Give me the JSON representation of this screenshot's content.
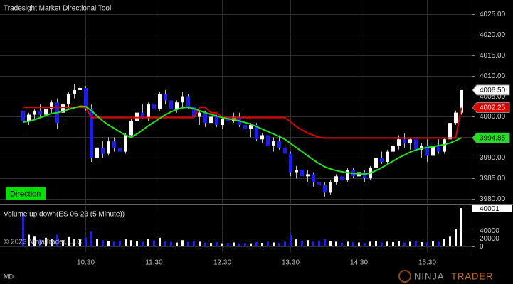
{
  "chart_data": [
    {
      "type": "candlestick",
      "title": "Tradesight Market Directional Tool",
      "button_label": "Direction",
      "categories": [
        null,
        null,
        null,
        null,
        null,
        null,
        null,
        null,
        null,
        null,
        null,
        "10:30",
        null,
        null,
        null,
        null,
        null,
        null,
        null,
        null,
        null,
        null,
        null,
        "11:30",
        null,
        null,
        null,
        null,
        null,
        null,
        null,
        null,
        null,
        null,
        null,
        "12:30",
        null,
        null,
        null,
        null,
        null,
        null,
        null,
        null,
        null,
        null,
        null,
        "13:30",
        null,
        null,
        null,
        null,
        null,
        null,
        null,
        null,
        null,
        null,
        null,
        "14:30",
        null,
        null,
        null,
        null,
        null,
        null,
        null,
        null,
        null,
        null,
        null,
        "15:30",
        null,
        null,
        null,
        null,
        null,
        null
      ],
      "open": [
        4001.5,
        3999.0,
        4000.5,
        4001.5,
        4000.5,
        4002.0,
        4003.5,
        4001.0,
        4003.0,
        4005.5,
        4006.5,
        4007.0,
        4002.0,
        3990.0,
        3992.5,
        3991.0,
        3994.0,
        3992.5,
        3991.5,
        3995.5,
        3999.0,
        4001.0,
        4000.0,
        4003.0,
        4002.0,
        4005.5,
        4004.0,
        4002.0,
        4003.5,
        4005.0,
        4002.5,
        4000.0,
        4001.0,
        3998.5,
        4000.0,
        3998.0,
        3999.5,
        3999.0,
        4000.0,
        3998.0,
        3997.0,
        3998.0,
        3994.5,
        3995.5,
        3993.0,
        3994.0,
        3992.5,
        3991.0,
        3986.5,
        3987.0,
        3985.5,
        3986.0,
        3984.0,
        3983.5,
        3981.5,
        3984.0,
        3985.5,
        3984.5,
        3987.0,
        3985.5,
        3986.5,
        3985.0,
        3987.5,
        3990.0,
        3989.0,
        3991.5,
        3993.0,
        3994.5,
        3993.5,
        3994.5,
        3992.0,
        3993.0,
        3990.5,
        3993.0,
        3991.5,
        3994.5,
        3998.5,
        4001.0
      ],
      "high": [
        4002.5,
        4001.0,
        4002.0,
        4003.0,
        4002.5,
        4004.0,
        4004.5,
        4004.0,
        4006.0,
        4008.0,
        4008.5,
        4007.5,
        4003.0,
        3993.5,
        3994.0,
        3995.0,
        3995.0,
        3993.5,
        3996.0,
        3999.5,
        4001.5,
        4003.0,
        4003.5,
        4005.0,
        4006.0,
        4006.5,
        4005.0,
        4004.0,
        4006.0,
        4005.5,
        4003.0,
        4001.5,
        4001.5,
        4000.5,
        4000.5,
        4000.0,
        4000.5,
        4001.0,
        4001.0,
        3999.5,
        3998.5,
        3998.5,
        3996.0,
        3996.0,
        3995.0,
        3995.5,
        3993.5,
        3991.5,
        3988.0,
        3987.5,
        3987.0,
        3986.5,
        3985.5,
        3984.0,
        3984.5,
        3986.0,
        3986.5,
        3987.5,
        3987.5,
        3987.0,
        3987.0,
        3988.0,
        3990.5,
        3991.5,
        3992.0,
        3993.5,
        3995.5,
        3996.0,
        3995.0,
        3995.0,
        3993.5,
        3994.5,
        3993.5,
        3994.5,
        3995.0,
        3999.0,
        4001.5,
        4006.5
      ],
      "low": [
        3995.5,
        3998.0,
        3999.5,
        4000.0,
        3999.0,
        4001.0,
        3997.0,
        3998.5,
        4002.0,
        4004.5,
        4005.0,
        4001.5,
        3989.0,
        3989.5,
        3990.0,
        3990.5,
        3991.5,
        3990.5,
        3991.0,
        3995.0,
        3998.0,
        3999.5,
        3999.0,
        4001.5,
        4001.5,
        4003.0,
        4001.0,
        4001.0,
        4002.5,
        4002.0,
        3999.0,
        3998.0,
        3997.5,
        3997.0,
        3997.5,
        3997.0,
        3998.0,
        3998.5,
        3997.5,
        3996.5,
        3995.0,
        3994.0,
        3993.5,
        3992.0,
        3991.5,
        3992.0,
        3989.5,
        3985.5,
        3985.0,
        3984.5,
        3984.0,
        3983.0,
        3982.5,
        3980.5,
        3981.0,
        3983.5,
        3983.5,
        3984.0,
        3985.0,
        3984.5,
        3984.0,
        3984.5,
        3987.0,
        3988.5,
        3988.5,
        3991.0,
        3992.0,
        3992.5,
        3992.0,
        3991.5,
        3990.0,
        3989.0,
        3990.0,
        3991.0,
        3991.0,
        3994.0,
        3998.0,
        4000.5
      ],
      "close": [
        3999.0,
        4000.5,
        4001.5,
        4000.5,
        4002.0,
        4003.5,
        3998.5,
        4003.0,
        4005.5,
        4006.5,
        4007.0,
        4002.0,
        3990.0,
        3992.5,
        3991.0,
        3994.0,
        3992.5,
        3991.5,
        3995.5,
        3999.0,
        4001.0,
        4000.0,
        4003.0,
        4002.0,
        4005.5,
        4004.0,
        4002.0,
        4003.5,
        4005.0,
        4002.5,
        4000.0,
        4001.0,
        3998.5,
        4000.0,
        3998.0,
        3999.5,
        3999.0,
        4000.0,
        3998.0,
        3997.0,
        3998.0,
        3994.5,
        3995.5,
        3993.0,
        3994.0,
        3992.5,
        3991.0,
        3986.5,
        3987.0,
        3985.5,
        3986.0,
        3984.0,
        3983.5,
        3981.5,
        3984.0,
        3985.5,
        3984.5,
        3987.0,
        3985.5,
        3986.5,
        3985.0,
        3987.5,
        3990.0,
        3989.0,
        3991.5,
        3993.0,
        3994.5,
        3993.5,
        3994.5,
        3992.0,
        3993.0,
        3990.5,
        3993.0,
        3991.5,
        3994.5,
        3998.5,
        4001.0,
        4006.5
      ],
      "up_color": "#ffffff",
      "down_color": "#1a1aff",
      "wick_color": "#bcbcbc",
      "lines": [
        {
          "color": "#e00000",
          "values": [
            4002.3,
            4002.3,
            4002.3,
            4002.3,
            4002.3,
            4002.3,
            4002.3,
            4002.3,
            4002.3,
            4002.3,
            4002.3,
            4002.3,
            3999.8,
            3999.8,
            3999.8,
            3999.8,
            3999.8,
            3999.8,
            3999.8,
            3999.8,
            3999.8,
            3999.8,
            3999.8,
            3999.8,
            3999.8,
            3999.8,
            3999.8,
            3999.8,
            3999.8,
            3999.8,
            3999.8,
            4002.3,
            4002.3,
            4001.0,
            4001.0,
            3999.8,
            3999.8,
            3999.8,
            3999.8,
            3999.8,
            3999.8,
            3999.8,
            3999.8,
            3999.8,
            3999.8,
            3999.8,
            3999.8,
            3998.8,
            3997.6,
            3996.8,
            3996.0,
            3995.5,
            3995.0,
            3994.8,
            3994.8,
            3994.8,
            3994.8,
            3994.8,
            3994.8,
            3994.8,
            3994.8,
            3994.8,
            3994.8,
            3994.8,
            3994.8,
            3994.8,
            3994.8,
            3994.8,
            3994.8,
            3994.8,
            3994.8,
            3994.8,
            3994.8,
            3994.8,
            3994.8,
            3994.8,
            3994.8,
            4002.25
          ]
        },
        {
          "color": "#22e022",
          "values": [
            3998.7,
            3998.9,
            3999.3,
            3999.8,
            4000.3,
            4000.8,
            4001.0,
            4001.3,
            4001.8,
            4002.2,
            4002.6,
            4002.5,
            4001.5,
            4000.2,
            3999.0,
            3998.0,
            3997.2,
            3996.3,
            3995.5,
            3995.0,
            3995.8,
            3996.8,
            3997.8,
            3998.7,
            3999.6,
            4000.5,
            4001.2,
            4001.8,
            4002.2,
            4002.3,
            4002.0,
            4001.5,
            4001.0,
            4000.6,
            4000.2,
            3999.8,
            3999.5,
            3999.3,
            3999.0,
            3998.6,
            3998.2,
            3997.6,
            3997.0,
            3996.4,
            3995.8,
            3995.2,
            3994.5,
            3993.5,
            3992.5,
            3991.5,
            3990.5,
            3989.5,
            3988.6,
            3987.8,
            3987.3,
            3986.9,
            3986.6,
            3986.4,
            3986.2,
            3986.1,
            3986.0,
            3986.3,
            3986.9,
            3987.6,
            3988.4,
            3989.2,
            3990.0,
            3990.7,
            3991.4,
            3991.9,
            3992.3,
            3992.5,
            3992.7,
            3993.0,
            3993.2,
            3993.6,
            3994.2,
            3994.85
          ]
        }
      ],
      "price_markers": [
        {
          "value": 4006.5,
          "label": "4006.50",
          "color": "#ffffff",
          "text_color": "#000000"
        },
        {
          "value": 4002.25,
          "label": "4002.25",
          "color": "#e00000",
          "text_color": "#ffffff"
        },
        {
          "value": 3994.85,
          "label": "3994.85",
          "color": "#22e022",
          "text_color": "#000000"
        }
      ],
      "ylim": [
        3978.8,
        4028.46
      ],
      "yticks": [
        {
          "value": 3980,
          "label": "3980.00"
        },
        {
          "value": 3985,
          "label": "3985.00"
        },
        {
          "value": 3990,
          "label": "3990.00"
        },
        {
          "value": 3995,
          "label": "3995.00"
        },
        {
          "value": 4000,
          "label": "4000.00"
        },
        {
          "value": 4005,
          "label": "4005.00"
        },
        {
          "value": 4010,
          "label": "4010.00"
        },
        {
          "value": 4015,
          "label": "4015.00"
        },
        {
          "value": 4020,
          "label": "4020.00"
        },
        {
          "value": 4025,
          "label": "4025.00"
        }
      ],
      "grid": true
    },
    {
      "type": "bar",
      "title": "Volume up down(ES 06-23 (5 Minute))",
      "annotation": "© 2023 NinjaTrader, LLC",
      "marker_label": "40001",
      "values": [
        86000,
        30000,
        25000,
        20000,
        22000,
        18000,
        30000,
        16000,
        24000,
        20000,
        18000,
        22000,
        38000,
        20000,
        16000,
        14000,
        12000,
        15000,
        18000,
        16000,
        14000,
        12000,
        20000,
        16000,
        22000,
        14000,
        12000,
        10000,
        16000,
        12000,
        14000,
        12000,
        10000,
        9000,
        11000,
        8000,
        9000,
        10000,
        8000,
        9000,
        8000,
        11000,
        9000,
        12000,
        10000,
        9000,
        12000,
        30000,
        18000,
        14000,
        16000,
        12000,
        15000,
        20000,
        14000,
        12000,
        10000,
        12000,
        11000,
        10000,
        9000,
        12000,
        14000,
        10000,
        12000,
        11000,
        13000,
        10000,
        12000,
        14000,
        11000,
        10000,
        13000,
        12000,
        20000,
        25000,
        45000,
        98000
      ],
      "ylim": [
        -14500,
        103600
      ],
      "yticks": [
        0,
        20000,
        40000
      ],
      "grid": true
    }
  ],
  "footer": {
    "instrument": "MD",
    "logo_first": "NINJA",
    "logo_second": "TRADER"
  }
}
